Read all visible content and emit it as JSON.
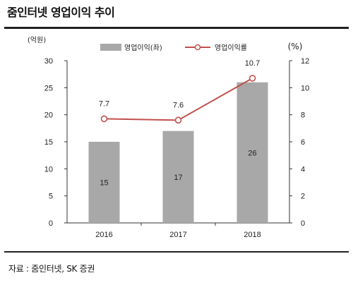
{
  "header": {
    "title": "줌인터넷 영업이익 추이"
  },
  "footer": {
    "source": "자료 : 줌인터넷, SK 증권"
  },
  "chart_data": {
    "type": "bar",
    "categories": [
      "2016",
      "2017",
      "2018"
    ],
    "series": [
      {
        "name": "영업이익(좌)",
        "type": "bar",
        "axis": "left",
        "values": [
          15,
          17,
          26
        ],
        "color": "#a8a8a8"
      },
      {
        "name": "영업이익률",
        "type": "line",
        "axis": "right",
        "values": [
          7.7,
          7.6,
          10.7
        ],
        "color": "#c0504d"
      }
    ],
    "left_axis": {
      "label": "(억원)",
      "ylim": [
        0,
        30
      ],
      "ticks": [
        "0",
        "5",
        "10",
        "15",
        "20",
        "25",
        "30"
      ]
    },
    "right_axis": {
      "label": "(%)",
      "ylim": [
        0,
        12
      ],
      "ticks": [
        "0",
        "2",
        "4",
        "6",
        "8",
        "10",
        "12"
      ]
    },
    "bar_labels": [
      "15",
      "17",
      "26"
    ],
    "line_labels": [
      "7.7",
      "7.6",
      "10.7"
    ],
    "legend_position": "top"
  }
}
